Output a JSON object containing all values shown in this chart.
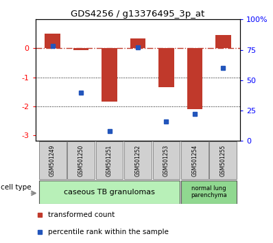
{
  "title": "GDS4256 / g13376495_3p_at",
  "samples": [
    "GSM501249",
    "GSM501250",
    "GSM501251",
    "GSM501252",
    "GSM501253",
    "GSM501254",
    "GSM501255"
  ],
  "transformed_count": [
    0.5,
    -0.05,
    -1.85,
    0.35,
    -1.35,
    -2.1,
    0.45
  ],
  "percentile_rank": [
    78,
    40,
    8,
    77,
    16,
    22,
    60
  ],
  "ylim_left": [
    -3.2,
    1.0
  ],
  "ylim_right": [
    0,
    100
  ],
  "left_yticks": [
    0,
    -1,
    -2,
    -3
  ],
  "right_yticks": [
    0,
    25,
    50,
    75,
    100
  ],
  "right_ytick_labels": [
    "0",
    "25",
    "50",
    "75",
    "100%"
  ],
  "bar_color": "#c0392b",
  "dot_color": "#2255bb",
  "dotted_lines": [
    -1,
    -2
  ],
  "group1_indices": [
    0,
    1,
    2,
    3,
    4
  ],
  "group2_indices": [
    5,
    6
  ],
  "group1_label": "caseous TB granulomas",
  "group2_label": "normal lung\nparenchyma",
  "group1_color": "#b8f0b8",
  "group2_color": "#90d890",
  "cell_type_label": "cell type",
  "legend_bar_label": "transformed count",
  "legend_dot_label": "percentile rank within the sample",
  "bar_width": 0.55
}
